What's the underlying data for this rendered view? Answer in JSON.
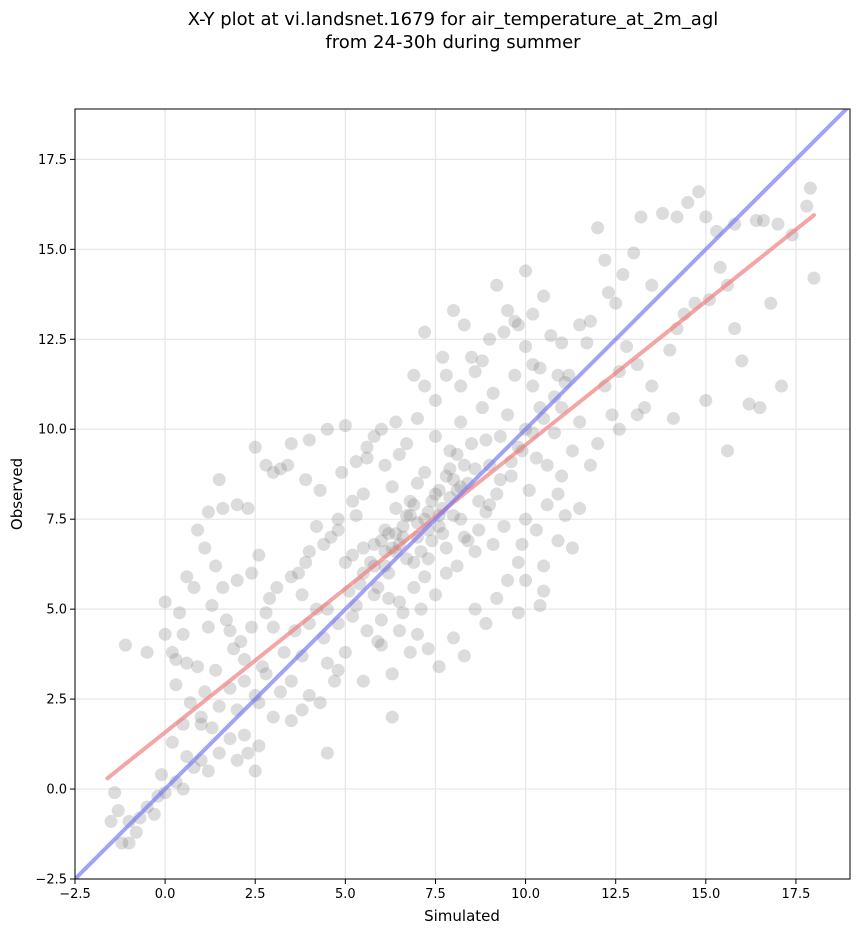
{
  "chart_data": {
    "type": "scatter",
    "title": "X-Y plot at vi.landsnet.1679 for air_temperature_at_2m_agl",
    "subtitle": "from 24-30h during summer",
    "xlabel": "Simulated",
    "ylabel": "Observed",
    "xlim": [
      -2.5,
      19.0
    ],
    "ylim": [
      -2.5,
      18.9
    ],
    "xticks": [
      -2.5,
      0.0,
      2.5,
      5.0,
      7.5,
      10.0,
      12.5,
      15.0,
      17.5
    ],
    "yticks": [
      -2.5,
      0.0,
      2.5,
      5.0,
      7.5,
      10.0,
      12.5,
      15.0,
      17.5
    ],
    "xtick_labels": [
      "−2.5",
      "0.0",
      "2.5",
      "5.0",
      "7.5",
      "10.0",
      "12.5",
      "15.0",
      "17.5"
    ],
    "ytick_labels": [
      "−2.5",
      "0.0",
      "2.5",
      "5.0",
      "7.5",
      "10.0",
      "12.5",
      "15.0",
      "17.5"
    ],
    "grid": true,
    "point_color": "#808080",
    "point_dense_color": "#2b2b2b",
    "regression_color": "#f08080",
    "identity_color": "#7b7bf2",
    "points": [
      [
        -1.5,
        -0.9
      ],
      [
        -1.4,
        -0.1
      ],
      [
        -1.3,
        -0.6
      ],
      [
        -1.2,
        -1.5
      ],
      [
        -1.0,
        -1.5
      ],
      [
        -1.0,
        -0.9
      ],
      [
        -0.8,
        -1.2
      ],
      [
        -0.7,
        -0.8
      ],
      [
        -0.5,
        -0.5
      ],
      [
        -0.3,
        -0.7
      ],
      [
        -0.2,
        -0.2
      ],
      [
        0.0,
        -0.1
      ],
      [
        -1.1,
        4.0
      ],
      [
        -0.5,
        3.8
      ],
      [
        0.0,
        4.3
      ],
      [
        0.0,
        5.2
      ],
      [
        0.2,
        3.8
      ],
      [
        0.3,
        3.6
      ],
      [
        0.5,
        4.3
      ],
      [
        0.6,
        3.5
      ],
      [
        0.5,
        0.0
      ],
      [
        0.8,
        0.6
      ],
      [
        1.0,
        0.8
      ],
      [
        1.2,
        0.5
      ],
      [
        1.0,
        1.8
      ],
      [
        1.5,
        1.0
      ],
      [
        1.8,
        1.4
      ],
      [
        2.0,
        0.8
      ],
      [
        2.3,
        1.0
      ],
      [
        2.5,
        0.5
      ],
      [
        2.2,
        1.5
      ],
      [
        2.6,
        1.2
      ],
      [
        1.0,
        2.0
      ],
      [
        1.5,
        2.3
      ],
      [
        1.8,
        2.8
      ],
      [
        2.0,
        2.2
      ],
      [
        2.2,
        3.0
      ],
      [
        2.6,
        2.4
      ],
      [
        2.8,
        3.2
      ],
      [
        3.0,
        2.0
      ],
      [
        3.2,
        2.7
      ],
      [
        3.5,
        3.0
      ],
      [
        3.8,
        2.2
      ],
      [
        1.2,
        4.5
      ],
      [
        1.3,
        5.1
      ],
      [
        1.6,
        5.6
      ],
      [
        1.8,
        4.4
      ],
      [
        2.0,
        5.8
      ],
      [
        2.4,
        6.0
      ],
      [
        2.6,
        6.5
      ],
      [
        2.9,
        5.3
      ],
      [
        1.2,
        7.7
      ],
      [
        1.4,
        6.2
      ],
      [
        1.5,
        8.6
      ],
      [
        2.0,
        7.9
      ],
      [
        2.5,
        9.5
      ],
      [
        2.8,
        9.0
      ],
      [
        3.2,
        8.9
      ],
      [
        3.5,
        9.6
      ],
      [
        4.0,
        9.7
      ],
      [
        4.5,
        10.0
      ],
      [
        3.7,
        6.0
      ],
      [
        3.8,
        5.4
      ],
      [
        4.0,
        6.6
      ],
      [
        4.2,
        7.3
      ],
      [
        4.5,
        5.0
      ],
      [
        4.6,
        7.0
      ],
      [
        4.8,
        7.5
      ],
      [
        5.0,
        6.3
      ],
      [
        5.2,
        4.8
      ],
      [
        3.6,
        4.4
      ],
      [
        3.8,
        3.7
      ],
      [
        4.0,
        4.6
      ],
      [
        4.2,
        5.0
      ],
      [
        4.4,
        4.2
      ],
      [
        4.5,
        3.5
      ],
      [
        4.7,
        3.0
      ],
      [
        4.8,
        4.6
      ],
      [
        5.0,
        3.8
      ],
      [
        5.1,
        5.5
      ],
      [
        5.2,
        6.5
      ],
      [
        5.3,
        7.6
      ],
      [
        5.5,
        8.2
      ],
      [
        5.6,
        9.2
      ],
      [
        5.8,
        6.8
      ],
      [
        5.9,
        5.6
      ],
      [
        6.0,
        4.7
      ],
      [
        6.1,
        7.2
      ],
      [
        6.2,
        6.0
      ],
      [
        6.3,
        8.4
      ],
      [
        6.4,
        6.6
      ],
      [
        6.5,
        5.2
      ],
      [
        6.6,
        7.0
      ],
      [
        6.7,
        9.6
      ],
      [
        6.8,
        8.0
      ],
      [
        6.9,
        6.3
      ],
      [
        7.0,
        7.4
      ],
      [
        7.1,
        5.0
      ],
      [
        7.2,
        8.8
      ],
      [
        7.3,
        7.7
      ],
      [
        7.4,
        6.9
      ],
      [
        7.5,
        9.8
      ],
      [
        7.6,
        8.3
      ],
      [
        7.7,
        7.1
      ],
      [
        7.8,
        6.0
      ],
      [
        7.9,
        8.9
      ],
      [
        8.0,
        7.6
      ],
      [
        8.1,
        9.3
      ],
      [
        8.2,
        10.2
      ],
      [
        8.3,
        7.0
      ],
      [
        8.4,
        8.5
      ],
      [
        8.5,
        9.6
      ],
      [
        8.6,
        6.6
      ],
      [
        8.7,
        8.0
      ],
      [
        8.8,
        10.6
      ],
      [
        8.9,
        7.7
      ],
      [
        9.0,
        9.0
      ],
      [
        9.1,
        11.0
      ],
      [
        9.2,
        8.2
      ],
      [
        9.3,
        9.8
      ],
      [
        9.4,
        7.3
      ],
      [
        9.5,
        10.4
      ],
      [
        9.6,
        8.7
      ],
      [
        9.7,
        11.5
      ],
      [
        9.8,
        9.5
      ],
      [
        9.9,
        6.8
      ],
      [
        10.0,
        10.0
      ],
      [
        10.1,
        8.3
      ],
      [
        10.2,
        11.8
      ],
      [
        10.3,
        9.2
      ],
      [
        5.4,
        5.7
      ],
      [
        5.7,
        6.3
      ],
      [
        6.0,
        6.9
      ],
      [
        6.3,
        6.7
      ],
      [
        6.6,
        7.3
      ],
      [
        6.9,
        7.9
      ],
      [
        7.2,
        7.5
      ],
      [
        7.5,
        8.2
      ],
      [
        7.8,
        8.7
      ],
      [
        8.1,
        8.3
      ],
      [
        5.5,
        6.0
      ],
      [
        5.8,
        5.4
      ],
      [
        6.1,
        6.2
      ],
      [
        6.4,
        7.8
      ],
      [
        6.7,
        6.4
      ],
      [
        7.0,
        8.5
      ],
      [
        7.3,
        6.4
      ],
      [
        7.6,
        7.3
      ],
      [
        7.9,
        9.4
      ],
      [
        8.2,
        7.5
      ],
      [
        6.0,
        4.0
      ],
      [
        6.3,
        3.2
      ],
      [
        6.5,
        4.4
      ],
      [
        6.8,
        3.8
      ],
      [
        7.0,
        4.3
      ],
      [
        7.3,
        3.9
      ],
      [
        7.6,
        3.4
      ],
      [
        8.0,
        4.2
      ],
      [
        8.3,
        3.7
      ],
      [
        8.6,
        5.0
      ],
      [
        8.9,
        4.6
      ],
      [
        9.2,
        5.3
      ],
      [
        9.5,
        5.8
      ],
      [
        9.8,
        4.9
      ],
      [
        10.0,
        5.8
      ],
      [
        10.4,
        5.1
      ],
      [
        10.5,
        6.2
      ],
      [
        6.3,
        2.0
      ],
      [
        4.5,
        1.0
      ],
      [
        3.5,
        1.9
      ],
      [
        4.0,
        2.6
      ],
      [
        4.3,
        2.4
      ],
      [
        4.8,
        3.3
      ],
      [
        5.5,
        3.0
      ],
      [
        3.3,
        3.8
      ],
      [
        3.0,
        4.5
      ],
      [
        2.7,
        3.4
      ],
      [
        2.5,
        2.6
      ],
      [
        2.2,
        3.6
      ],
      [
        1.9,
        3.9
      ],
      [
        5.0,
        10.1
      ],
      [
        5.6,
        9.5
      ],
      [
        6.0,
        10.0
      ],
      [
        6.5,
        9.3
      ],
      [
        7.0,
        10.3
      ],
      [
        7.2,
        11.2
      ],
      [
        7.5,
        10.8
      ],
      [
        7.8,
        11.5
      ],
      [
        8.0,
        13.3
      ],
      [
        8.3,
        12.9
      ],
      [
        8.5,
        12.0
      ],
      [
        8.8,
        11.9
      ],
      [
        9.0,
        12.5
      ],
      [
        9.2,
        14.0
      ],
      [
        9.4,
        12.7
      ],
      [
        9.7,
        13.0
      ],
      [
        10.0,
        12.3
      ],
      [
        10.0,
        14.4
      ],
      [
        10.2,
        13.2
      ],
      [
        10.5,
        13.7
      ],
      [
        10.7,
        12.6
      ],
      [
        11.0,
        12.4
      ],
      [
        11.2,
        11.5
      ],
      [
        11.5,
        12.9
      ],
      [
        11.8,
        13.0
      ],
      [
        12.0,
        15.6
      ],
      [
        12.2,
        14.7
      ],
      [
        12.5,
        13.5
      ],
      [
        12.7,
        14.3
      ],
      [
        13.0,
        14.9
      ],
      [
        13.2,
        15.9
      ],
      [
        13.5,
        14.0
      ],
      [
        13.8,
        16.0
      ],
      [
        14.2,
        15.9
      ],
      [
        14.5,
        16.3
      ],
      [
        14.8,
        16.6
      ],
      [
        15.0,
        15.9
      ],
      [
        15.3,
        15.5
      ],
      [
        15.8,
        15.7
      ],
      [
        16.4,
        15.8
      ],
      [
        16.6,
        15.8
      ],
      [
        17.0,
        15.7
      ],
      [
        17.4,
        15.4
      ],
      [
        17.8,
        16.2
      ],
      [
        17.9,
        16.7
      ],
      [
        18.0,
        14.2
      ],
      [
        16.8,
        13.5
      ],
      [
        17.1,
        11.2
      ],
      [
        16.5,
        10.6
      ],
      [
        16.2,
        10.7
      ],
      [
        16.0,
        11.9
      ],
      [
        15.8,
        12.8
      ],
      [
        15.6,
        14.0
      ],
      [
        15.4,
        14.5
      ],
      [
        15.1,
        13.6
      ],
      [
        15.0,
        10.8
      ],
      [
        14.7,
        13.5
      ],
      [
        14.4,
        13.2
      ],
      [
        14.2,
        12.8
      ],
      [
        14.0,
        12.2
      ],
      [
        14.1,
        10.3
      ],
      [
        13.5,
        11.2
      ],
      [
        13.3,
        10.6
      ],
      [
        13.1,
        11.8
      ],
      [
        12.8,
        12.3
      ],
      [
        12.6,
        11.6
      ],
      [
        12.4,
        10.4
      ],
      [
        12.2,
        11.2
      ],
      [
        12.0,
        9.6
      ],
      [
        11.8,
        9.0
      ],
      [
        12.6,
        10.0
      ],
      [
        11.5,
        10.2
      ],
      [
        11.3,
        9.4
      ],
      [
        11.0,
        10.6
      ],
      [
        10.8,
        9.9
      ],
      [
        10.6,
        9.0
      ],
      [
        10.4,
        10.6
      ],
      [
        10.2,
        11.2
      ],
      [
        11.0,
        8.7
      ],
      [
        11.5,
        7.8
      ],
      [
        11.1,
        7.6
      ],
      [
        10.9,
        8.2
      ],
      [
        10.6,
        7.9
      ],
      [
        10.3,
        7.2
      ],
      [
        10.9,
        6.9
      ],
      [
        11.3,
        6.7
      ],
      [
        10.0,
        7.5
      ],
      [
        9.8,
        6.3
      ],
      [
        10.5,
        5.5
      ],
      [
        9.1,
        6.8
      ],
      [
        13.1,
        10.4
      ],
      [
        15.6,
        9.4
      ],
      [
        9.8,
        12.9
      ],
      [
        10.4,
        11.7
      ],
      [
        11.7,
        12.4
      ],
      [
        10.9,
        11.5
      ],
      [
        12.3,
        13.8
      ],
      [
        8.6,
        11.6
      ],
      [
        8.2,
        11.2
      ],
      [
        9.5,
        13.3
      ],
      [
        7.7,
        12.0
      ],
      [
        7.2,
        12.7
      ],
      [
        6.9,
        11.5
      ],
      [
        6.4,
        10.2
      ],
      [
        6.1,
        9.0
      ],
      [
        5.8,
        9.8
      ],
      [
        5.3,
        9.1
      ],
      [
        4.9,
        8.8
      ],
      [
        4.3,
        8.3
      ],
      [
        3.9,
        8.6
      ],
      [
        5.2,
        8.0
      ],
      [
        4.8,
        7.2
      ],
      [
        4.4,
        6.8
      ],
      [
        3.9,
        6.3
      ],
      [
        3.5,
        5.9
      ],
      [
        3.1,
        5.6
      ],
      [
        2.8,
        4.9
      ],
      [
        2.4,
        4.5
      ],
      [
        2.1,
        4.1
      ],
      [
        1.7,
        4.7
      ],
      [
        5.3,
        5.1
      ],
      [
        5.6,
        4.4
      ],
      [
        5.9,
        4.1
      ],
      [
        6.2,
        5.3
      ],
      [
        6.6,
        4.9
      ],
      [
        6.9,
        5.6
      ],
      [
        7.2,
        5.9
      ],
      [
        7.5,
        5.4
      ],
      [
        7.8,
        6.7
      ],
      [
        8.1,
        6.2
      ],
      [
        8.4,
        6.9
      ],
      [
        8.7,
        7.2
      ],
      [
        9.0,
        7.9
      ],
      [
        9.3,
        8.6
      ],
      [
        9.6,
        9.1
      ],
      [
        9.9,
        9.4
      ],
      [
        10.2,
        9.9
      ],
      [
        10.5,
        10.3
      ],
      [
        10.8,
        10.9
      ],
      [
        11.1,
        11.3
      ],
      [
        6.2,
        7.1
      ],
      [
        6.5,
        6.8
      ],
      [
        6.8,
        7.6
      ],
      [
        7.1,
        6.6
      ],
      [
        7.4,
        8.0
      ],
      [
        7.7,
        7.8
      ],
      [
        8.0,
        8.6
      ],
      [
        8.3,
        9.0
      ],
      [
        8.6,
        8.9
      ],
      [
        8.9,
        9.7
      ],
      [
        7.0,
        7.0
      ],
      [
        7.3,
        7.2
      ],
      [
        7.6,
        7.6
      ],
      [
        7.9,
        8.1
      ],
      [
        8.2,
        8.4
      ],
      [
        6.7,
        7.6
      ],
      [
        6.4,
        7.1
      ],
      [
        6.1,
        6.6
      ],
      [
        5.8,
        6.2
      ],
      [
        5.5,
        6.7
      ],
      [
        3.0,
        8.8
      ],
      [
        3.4,
        9.0
      ],
      [
        2.3,
        7.8
      ],
      [
        1.6,
        7.8
      ],
      [
        0.9,
        7.2
      ],
      [
        1.1,
        6.7
      ],
      [
        0.8,
        5.6
      ],
      [
        0.4,
        4.9
      ],
      [
        0.6,
        5.9
      ],
      [
        1.4,
        3.3
      ],
      [
        1.1,
        2.7
      ],
      [
        0.7,
        2.4
      ],
      [
        0.3,
        2.9
      ],
      [
        0.9,
        3.4
      ],
      [
        0.5,
        1.8
      ],
      [
        0.2,
        1.3
      ],
      [
        -0.1,
        0.4
      ],
      [
        0.3,
        0.2
      ],
      [
        0.6,
        0.9
      ],
      [
        1.3,
        1.7
      ]
    ],
    "regression_line": {
      "x": [
        -1.6,
        18.0
      ],
      "y": [
        0.3,
        15.95
      ]
    },
    "identity_line": {
      "x": [
        -2.5,
        19.0
      ],
      "y": [
        -2.5,
        19.0
      ]
    }
  }
}
